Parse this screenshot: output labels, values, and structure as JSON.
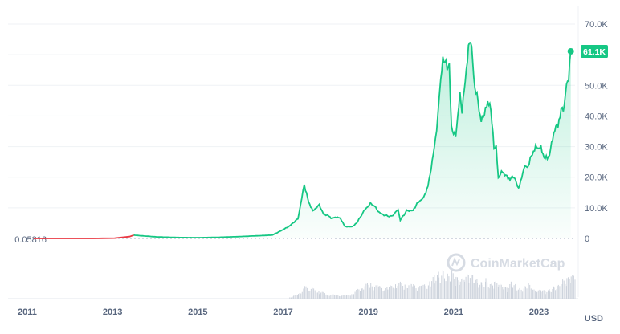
{
  "chart_data": {
    "type": "area",
    "y_ticks": [
      "0",
      "10.0K",
      "20.0K",
      "30.0K",
      "40.0K",
      "50.0K",
      "60.0K",
      "70.0K"
    ],
    "y_tick_values": [
      0,
      10000,
      20000,
      30000,
      40000,
      50000,
      60000,
      70000
    ],
    "ylim": [
      0,
      70000
    ],
    "x_ticks": [
      "2011",
      "2013",
      "2015",
      "2017",
      "2019",
      "2021",
      "2023"
    ],
    "x_tick_values": [
      2011,
      2013,
      2015,
      2017,
      2019,
      2021,
      2023
    ],
    "xlim": [
      2011.0,
      2024.3
    ],
    "currency": "USD",
    "start_value_label": "0.05816",
    "current_value_label": "61.1K",
    "current_value": 61100,
    "watermark": "CoinMarketCap",
    "colors": {
      "line_up": "#16c784",
      "line_down": "#ea3943",
      "badge": "#16c784",
      "grid": "#eff2f5",
      "reference_line": "#a6b0c3"
    },
    "series": [
      {
        "x": [
          2011.6,
          2012.0,
          2012.5,
          2013.0,
          2013.5,
          2013.85,
          2013.95,
          2014.1,
          2014.5,
          2015.0,
          2015.5,
          2016.0,
          2016.5,
          2016.9,
          2017.2,
          2017.4,
          2017.6,
          2017.8,
          2017.95,
          2018.05,
          2018.15,
          2018.3,
          2018.4,
          2018.5,
          2018.6,
          2018.7,
          2018.8,
          2018.9,
          2019.0,
          2019.1,
          2019.2,
          2019.35,
          2019.5,
          2019.6,
          2019.7,
          2019.85,
          2020.0,
          2020.15,
          2020.2,
          2020.35,
          2020.5,
          2020.6,
          2020.75,
          2020.85,
          2020.95,
          2021.0,
          2021.08,
          2021.15,
          2021.2,
          2021.25,
          2021.3,
          2021.35,
          2021.4,
          2021.45,
          2021.5,
          2021.55,
          2021.6,
          2021.65,
          2021.7,
          2021.75,
          2021.8,
          2021.85,
          2021.9,
          2021.95,
          2022.0,
          2022.1,
          2022.2,
          2022.3,
          2022.4,
          2022.45,
          2022.5,
          2022.6,
          2022.7,
          2022.8,
          2022.85,
          2022.9,
          2022.95,
          2023.0,
          2023.1,
          2023.2,
          2023.3,
          2023.4,
          2023.5,
          2023.6,
          2023.7,
          2023.8,
          2023.9,
          2024.0,
          2024.05,
          2024.1,
          2024.15,
          2024.2
        ],
        "y": [
          0.06,
          5,
          7,
          13,
          100,
          600,
          1100,
          900,
          500,
          300,
          250,
          400,
          650,
          900,
          1100,
          2500,
          4000,
          6500,
          17500,
          12000,
          9000,
          11000,
          8000,
          7500,
          6500,
          7000,
          6500,
          4000,
          3800,
          4000,
          5500,
          9000,
          11500,
          10500,
          8500,
          7500,
          7200,
          9500,
          6000,
          9000,
          9200,
          11500,
          13500,
          17000,
          25000,
          30000,
          39000,
          52000,
          58000,
          59000,
          55000,
          57000,
          36000,
          35000,
          33000,
          40000,
          47000,
          42000,
          48000,
          55000,
          62000,
          66000,
          57000,
          49000,
          47000,
          38000,
          42000,
          45000,
          30000,
          29500,
          20000,
          22000,
          20000,
          19500,
          20500,
          19000,
          17000,
          17000,
          23000,
          23500,
          28000,
          30000,
          29500,
          26000,
          27000,
          34500,
          37500,
          42500,
          43000,
          51000,
          52000,
          61100
        ]
      }
    ],
    "volume": {
      "x": [
        2017.6,
        2017.8,
        2017.95,
        2018.1,
        2018.3,
        2018.5,
        2018.7,
        2018.9,
        2019.1,
        2019.3,
        2019.5,
        2019.7,
        2019.9,
        2020.1,
        2020.3,
        2020.5,
        2020.7,
        2020.9,
        2021.0,
        2021.1,
        2021.2,
        2021.3,
        2021.4,
        2021.5,
        2021.6,
        2021.7,
        2021.8,
        2021.9,
        2022.0,
        2022.1,
        2022.2,
        2022.3,
        2022.4,
        2022.5,
        2022.6,
        2022.7,
        2022.8,
        2022.9,
        2023.0,
        2023.1,
        2023.2,
        2023.3,
        2023.4,
        2023.5,
        2023.6,
        2023.7,
        2023.8,
        2023.9,
        2024.0,
        2024.1,
        2024.2
      ],
      "values": [
        0.05,
        0.15,
        0.4,
        0.35,
        0.25,
        0.15,
        0.12,
        0.1,
        0.2,
        0.45,
        0.5,
        0.4,
        0.35,
        0.55,
        0.5,
        0.45,
        0.4,
        0.6,
        0.75,
        0.85,
        0.95,
        0.8,
        0.9,
        0.7,
        0.6,
        0.7,
        0.8,
        0.75,
        0.6,
        0.55,
        0.65,
        0.45,
        0.55,
        0.5,
        0.4,
        0.35,
        0.55,
        0.45,
        0.35,
        0.4,
        0.5,
        0.3,
        0.25,
        0.3,
        0.25,
        0.3,
        0.4,
        0.45,
        0.6,
        0.65,
        0.75
      ]
    }
  }
}
